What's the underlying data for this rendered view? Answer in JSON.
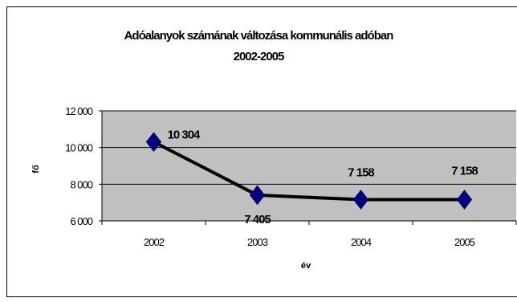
{
  "chart_data": {
    "type": "line",
    "title": "Adóalanyok számának változása kommunális adóban",
    "subtitle": "2002-2005",
    "xlabel": "év",
    "ylabel": "fő",
    "categories": [
      "2002",
      "2003",
      "2004",
      "2005"
    ],
    "values": [
      10304,
      7405,
      7158,
      7158
    ],
    "data_labels": [
      "10 304",
      "7 405",
      "7 158",
      "7 158"
    ],
    "ylim": [
      6000,
      12000
    ],
    "yticks": [
      6000,
      8000,
      10000,
      12000
    ],
    "ytick_labels": [
      "6 000",
      "8 000",
      "10 000",
      "12 000"
    ],
    "grid": true,
    "plot_background": "#c0c0c0",
    "line_color": "#000000",
    "marker": "diamond",
    "marker_color": "#000080",
    "legend": "none"
  }
}
